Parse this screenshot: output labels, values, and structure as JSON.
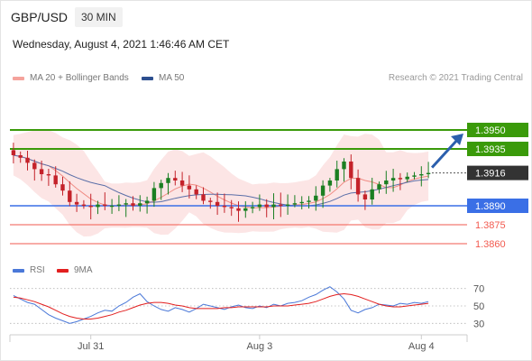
{
  "header": {
    "pair": "GBP/USD",
    "timeframe": "30 MIN",
    "datetime": "Wednesday, August 4, 2021 1:46:46 AM CET"
  },
  "legend": {
    "ma20_label": "MA 20 + Bollinger Bands",
    "ma50_label": "MA 50",
    "credit": "Research © 2021 Trading Central",
    "rsi_label": "RSI",
    "rsi_ma_label": "9MA"
  },
  "colors": {
    "green": "#3a9a0a",
    "blue": "#3a6fe6",
    "red": "#f25a4f",
    "candle_up": "#1b7f22",
    "candle_down": "#c4222a",
    "band_fill": "#fce4e4",
    "ma20": "#f08c84",
    "ma50": "#5b6fa8",
    "current_box": "#333333",
    "arrow": "#2b5fad"
  },
  "chart_data": {
    "type": "candlestick",
    "symbol": "GBP/USD",
    "interval": "30 MIN",
    "x_ticks": [
      {
        "label": "Jul 31",
        "index": 11
      },
      {
        "label": "Aug 3",
        "index": 35
      },
      {
        "label": "Aug 4",
        "index": 58
      }
    ],
    "price_range": [
      1.385,
      1.3975
    ],
    "close_prices": [
      1.393,
      1.3928,
      1.3924,
      1.3919,
      1.3915,
      1.3914,
      1.3907,
      1.3902,
      1.3893,
      1.3891,
      1.389,
      1.3889,
      1.3891,
      1.389,
      1.389,
      1.3891,
      1.3892,
      1.389,
      1.3892,
      1.3894,
      1.3904,
      1.3908,
      1.3912,
      1.391,
      1.3906,
      1.3903,
      1.3899,
      1.3894,
      1.3893,
      1.389,
      1.3889,
      1.3888,
      1.3886,
      1.3888,
      1.3889,
      1.3891,
      1.3889,
      1.3891,
      1.389,
      1.3891,
      1.3892,
      1.3893,
      1.3894,
      1.3898,
      1.3906,
      1.391,
      1.3919,
      1.3925,
      1.3912,
      1.3899,
      1.3895,
      1.3903,
      1.3907,
      1.391,
      1.3912,
      1.3911,
      1.3913,
      1.3914,
      1.3915,
      1.3916
    ],
    "levels": {
      "resistance": [
        1.395,
        1.3935
      ],
      "current": 1.3916,
      "pivot": 1.389,
      "support": [
        1.3875,
        1.386
      ]
    },
    "level_labels": {
      "r2": "1.3950",
      "r1": "1.3935",
      "current": "1.3916",
      "pivot": "1.3890",
      "s1": "1.3875",
      "s2": "1.3860"
    },
    "rsi": {
      "axis_labels": [
        "70",
        "50",
        "30"
      ],
      "range": [
        20,
        80
      ],
      "rsi": [
        62,
        58,
        54,
        52,
        46,
        40,
        36,
        33,
        30,
        32,
        35,
        38,
        42,
        45,
        44,
        50,
        54,
        60,
        64,
        55,
        50,
        46,
        44,
        48,
        46,
        43,
        47,
        52,
        50,
        48,
        46,
        49,
        51,
        48,
        47,
        50,
        48,
        52,
        50,
        53,
        54,
        56,
        60,
        63,
        68,
        72,
        66,
        58,
        45,
        42,
        46,
        48,
        52,
        51,
        50,
        53,
        52,
        54,
        53,
        55
      ],
      "ma": [
        60,
        59,
        57,
        55,
        52,
        49,
        45,
        41,
        38,
        36,
        35,
        35,
        36,
        38,
        40,
        43,
        45,
        48,
        51,
        53,
        54,
        54,
        53,
        51,
        50,
        48,
        47,
        47,
        47,
        47,
        48,
        48,
        49,
        49,
        49,
        49,
        49,
        50,
        50,
        50,
        51,
        52,
        53,
        55,
        58,
        61,
        63,
        64,
        63,
        61,
        58,
        55,
        52,
        50,
        49,
        49,
        50,
        51,
        52,
        53
      ]
    }
  }
}
